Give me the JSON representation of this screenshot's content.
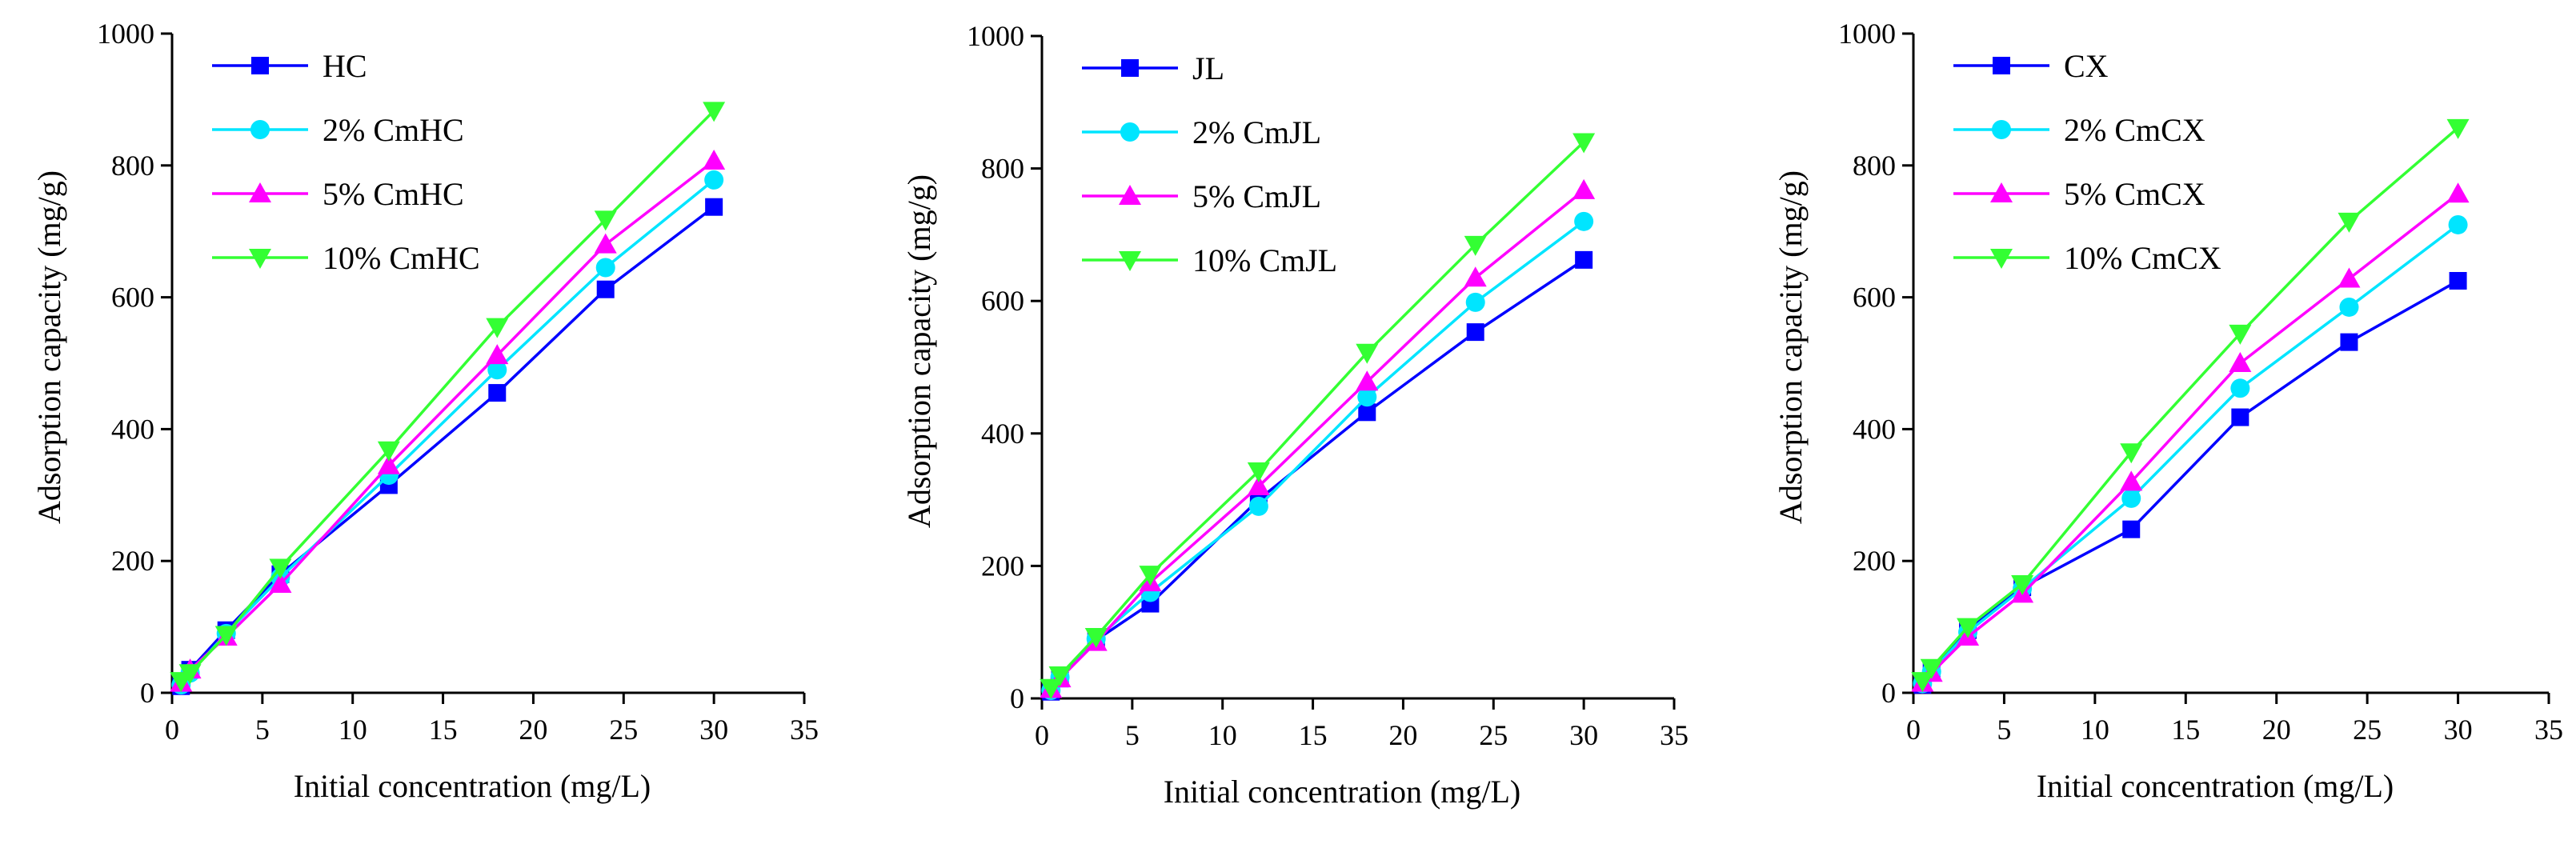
{
  "chart_data": [
    {
      "type": "line",
      "xlabel": "Initial concentration (mg/L)",
      "ylabel": "Adsorption capacity (mg/g)",
      "xlim": [
        0,
        35
      ],
      "ylim": [
        0,
        1000
      ],
      "xticks": [
        0,
        5,
        10,
        15,
        20,
        25,
        30,
        35
      ],
      "yticks": [
        0,
        200,
        400,
        600,
        800,
        1000
      ],
      "grid": false,
      "legend_position": "top-left",
      "x": [
        0.5,
        1,
        3,
        6,
        12,
        18,
        24,
        30
      ],
      "series": [
        {
          "name": "HC",
          "color": "#0000ff",
          "marker": "square",
          "values": [
            10,
            35,
            95,
            180,
            315,
            455,
            612,
            737
          ]
        },
        {
          "name": "2% CmHC",
          "color": "#00e5ff",
          "marker": "circle",
          "values": [
            12,
            30,
            90,
            175,
            330,
            490,
            645,
            778
          ]
        },
        {
          "name": "5% CmHC",
          "color": "#ff00ff",
          "marker": "triangle-up",
          "values": [
            15,
            35,
            85,
            165,
            345,
            512,
            680,
            807
          ]
        },
        {
          "name": "10% CmHC",
          "color": "#33ff33",
          "marker": "triangle-down",
          "values": [
            18,
            30,
            88,
            190,
            368,
            555,
            718,
            883
          ]
        }
      ]
    },
    {
      "type": "line",
      "xlabel": "Initial concentration (mg/L)",
      "ylabel": "Adsorption capacity (mg/g)",
      "xlim": [
        0,
        35
      ],
      "ylim": [
        0,
        1000
      ],
      "xticks": [
        0,
        5,
        10,
        15,
        20,
        25,
        30,
        35
      ],
      "yticks": [
        0,
        200,
        400,
        600,
        800,
        1000
      ],
      "grid": false,
      "legend_position": "top-left",
      "x": [
        0.5,
        1,
        3,
        6,
        12,
        18,
        24,
        30
      ],
      "series": [
        {
          "name": "JL",
          "color": "#0000ff",
          "marker": "square",
          "values": [
            10,
            30,
            88,
            143,
            300,
            432,
            553,
            662
          ]
        },
        {
          "name": "2% CmJL",
          "color": "#00e5ff",
          "marker": "circle",
          "values": [
            12,
            32,
            90,
            160,
            290,
            455,
            598,
            720
          ]
        },
        {
          "name": "5% CmJL",
          "color": "#ff00ff",
          "marker": "triangle-up",
          "values": [
            14,
            30,
            85,
            175,
            320,
            478,
            635,
            767
          ]
        },
        {
          "name": "10% CmJL",
          "color": "#33ff33",
          "marker": "triangle-down",
          "values": [
            16,
            35,
            93,
            187,
            343,
            522,
            685,
            840
          ]
        }
      ]
    },
    {
      "type": "line",
      "xlabel": "Initial concentration (mg/L)",
      "ylabel": "Adsorption capacity (mg/g)",
      "xlim": [
        0,
        35
      ],
      "ylim": [
        0,
        1000
      ],
      "xticks": [
        0,
        5,
        10,
        15,
        20,
        25,
        30,
        35
      ],
      "yticks": [
        0,
        200,
        400,
        600,
        800,
        1000
      ],
      "grid": false,
      "legend_position": "top-left",
      "x": [
        0.5,
        1,
        3,
        6,
        12,
        18,
        24,
        30
      ],
      "series": [
        {
          "name": "CX",
          "color": "#0000ff",
          "marker": "square",
          "values": [
            12,
            35,
            95,
            160,
            248,
            418,
            532,
            625
          ]
        },
        {
          "name": "2% CmCX",
          "color": "#00e5ff",
          "marker": "circle",
          "values": [
            14,
            32,
            92,
            158,
            295,
            462,
            585,
            710
          ]
        },
        {
          "name": "5% CmCX",
          "color": "#ff00ff",
          "marker": "triangle-up",
          "values": [
            15,
            30,
            85,
            150,
            320,
            500,
            628,
            757
          ]
        },
        {
          "name": "10% CmCX",
          "color": "#33ff33",
          "marker": "triangle-down",
          "values": [
            18,
            38,
            100,
            165,
            365,
            545,
            715,
            857
          ]
        }
      ]
    }
  ]
}
